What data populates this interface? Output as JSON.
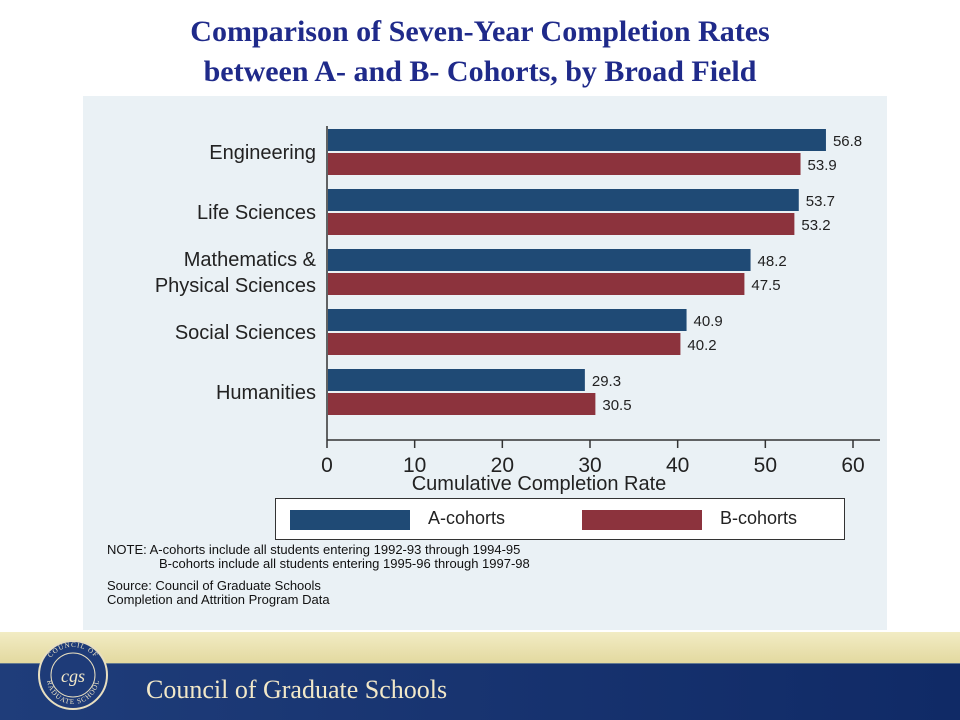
{
  "title_lines": [
    "Comparison of Seven-Year Completion Rates",
    "between A- and B- Cohorts, by Broad Field"
  ],
  "chart_data": {
    "type": "bar",
    "orientation": "horizontal",
    "categories": [
      "Engineering",
      "Life Sciences",
      "Mathematics & Physical Sciences",
      "Social Sciences",
      "Humanities"
    ],
    "category_label_lines": [
      [
        "Engineering"
      ],
      [
        "Life Sciences"
      ],
      [
        "Mathematics &",
        "Physical Sciences"
      ],
      [
        "Social Sciences"
      ],
      [
        "Humanities"
      ]
    ],
    "series": [
      {
        "name": "A-cohorts",
        "values": [
          56.8,
          53.7,
          48.2,
          40.9,
          29.3
        ],
        "color": "#1f4a75"
      },
      {
        "name": "B-cohorts",
        "values": [
          53.9,
          53.2,
          47.5,
          40.2,
          30.5
        ],
        "color": "#8c333d"
      }
    ],
    "value_labels": [
      [
        "56.8",
        "53.7",
        "48.2",
        "40.9",
        "29.3"
      ],
      [
        "53.9",
        "53.2",
        "47.5",
        "40.2",
        "30.5"
      ]
    ],
    "xlabel": "Cumulative Completion Rate",
    "xlim": [
      0,
      60
    ],
    "xticks": [
      "0",
      "10",
      "20",
      "30",
      "40",
      "50",
      "60"
    ],
    "grid": false,
    "legend_position": "bottom"
  },
  "notes": {
    "note_line1": "NOTE: A-cohorts include all students entering 1992-93 through 1994-95",
    "note_line2": "B-cohorts include all students entering 1995-96 through 1997-98",
    "source_line1": "Source: Council of Graduate Schools",
    "source_line2": "Completion and Attrition Program Data"
  },
  "footer": {
    "org_name": "Council of Graduate Schools",
    "seal_text": "COUNCIL OF GRADUATE SCHOOLS",
    "seal_initials": "cgs"
  }
}
